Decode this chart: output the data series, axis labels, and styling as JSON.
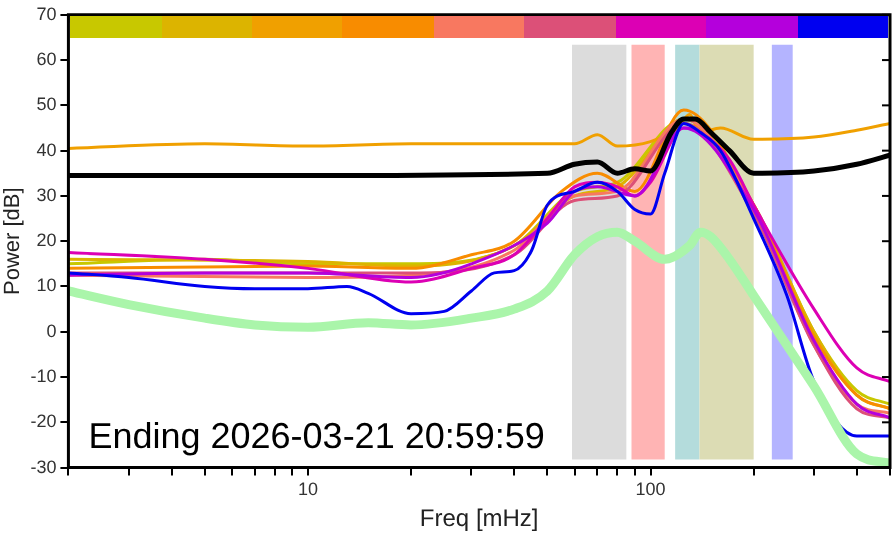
{
  "chart_data": {
    "type": "line",
    "xlabel": "Freq [mHz]",
    "ylabel": "Power [dB]",
    "log": "x",
    "xlim": [
      2,
      500
    ],
    "ylim": [
      -30,
      70
    ],
    "xticks": [
      {
        "value": 2,
        "label": null
      },
      {
        "value": 3,
        "label": null
      },
      {
        "value": 4,
        "label": null
      },
      {
        "value": 5,
        "label": null
      },
      {
        "value": 6,
        "label": null
      },
      {
        "value": 7,
        "label": null
      },
      {
        "value": 8,
        "label": null
      },
      {
        "value": 9,
        "label": null
      },
      10,
      {
        "value": 20,
        "label": null
      },
      {
        "value": 30,
        "label": null
      },
      {
        "value": 40,
        "label": null
      },
      {
        "value": 50,
        "label": null
      },
      {
        "value": 60,
        "label": null
      },
      {
        "value": 70,
        "label": null
      },
      {
        "value": 80,
        "label": null
      },
      {
        "value": 90,
        "label": null
      },
      100,
      {
        "value": 200,
        "label": null
      },
      {
        "value": 300,
        "label": null
      },
      {
        "value": 400,
        "label": null
      },
      {
        "value": 500,
        "label": null
      }
    ],
    "yticks": [
      -30,
      -20,
      -10,
      0,
      10,
      20,
      30,
      40,
      50,
      60,
      70
    ],
    "grid": false,
    "legend": false,
    "marker": "none",
    "line_style": "solid",
    "bands": [
      {
        "axis": "x",
        "from": 59,
        "to": 85,
        "color": "#dcdcdc"
      },
      {
        "axis": "x",
        "from": 88,
        "to": 110,
        "color": "#ffb4b4"
      },
      {
        "axis": "x",
        "from": 118,
        "to": 139,
        "color": "#b4dcdc"
      },
      {
        "axis": "x",
        "from": 139,
        "to": 200,
        "color": "#dcdcb4"
      },
      {
        "axis": "x",
        "from": 226,
        "to": 260,
        "color": "#b4b4ff"
      }
    ],
    "annotations": [
      "Ending 2026-03-21 20:59:59"
    ],
    "series": [
      {
        "color": "#c8c800",
        "x": [
          2,
          5,
          10,
          20,
          40,
          60,
          80,
          125,
          200,
          300,
          400,
          500
        ],
        "values": [
          15,
          16,
          15,
          15,
          19,
          31,
          33,
          47,
          28,
          0,
          -13,
          -16
        ]
      },
      {
        "color": "#dcb400",
        "x": [
          2,
          10,
          20,
          40,
          60,
          80,
          125,
          200,
          300,
          400,
          500
        ],
        "values": [
          16,
          15.5,
          14.5,
          19,
          30,
          32,
          46,
          28,
          0,
          -14,
          -17
        ]
      },
      {
        "color": "#f0a000",
        "x": [
          2,
          5,
          10,
          20,
          40,
          60,
          70,
          80,
          100,
          120,
          130,
          140,
          160,
          200,
          300,
          400,
          500
        ],
        "values": [
          40.5,
          41.5,
          41,
          41.5,
          41.5,
          41.5,
          43.5,
          41,
          42,
          45,
          48,
          44,
          45,
          42.5,
          43,
          44.5,
          46
        ]
      },
      {
        "color": "#f88c00",
        "x": [
          2,
          10,
          20,
          30,
          40,
          55,
          70,
          90,
          125,
          200,
          300,
          400,
          500
        ],
        "values": [
          14,
          14.5,
          14,
          17,
          20,
          31,
          35,
          31,
          49,
          28,
          -1,
          -14,
          -17
        ]
      },
      {
        "color": "#f87860",
        "x": [
          2,
          10,
          20,
          40,
          60,
          80,
          125,
          200,
          300,
          400,
          500
        ],
        "values": [
          12.5,
          12,
          12.5,
          18,
          30,
          31,
          47,
          27,
          -3,
          -16,
          -18
        ]
      },
      {
        "color": "#dc5078",
        "x": [
          2,
          10,
          20,
          40,
          60,
          80,
          125,
          200,
          300,
          400,
          500
        ],
        "values": [
          13,
          13,
          13,
          17,
          29,
          30,
          46,
          26,
          -3,
          -17,
          -19
        ]
      },
      {
        "color": "#dc00b4",
        "x": [
          2,
          5,
          10,
          20,
          30,
          40,
          50,
          60,
          70,
          80,
          90,
          100,
          125,
          140,
          170,
          200,
          300,
          400,
          500
        ],
        "values": [
          17.5,
          16,
          14,
          11,
          14,
          17,
          25,
          32,
          33,
          32,
          30,
          33,
          45,
          44,
          38,
          28,
          5,
          -8,
          -11
        ]
      },
      {
        "color": "#b400dc",
        "x": [
          2,
          5,
          10,
          20,
          30,
          50,
          60,
          70,
          90,
          125,
          200,
          300,
          400,
          500
        ],
        "values": [
          12.5,
          13,
          13,
          12,
          15,
          24,
          31,
          32,
          30,
          45,
          27,
          -2,
          -16,
          -19
        ]
      },
      {
        "color": "#0000f0",
        "x": [
          2,
          3,
          5,
          7,
          10,
          13,
          15,
          20,
          25,
          30,
          35,
          40,
          45,
          50,
          60,
          70,
          80,
          90,
          100,
          110,
          125,
          140,
          160,
          200,
          250,
          300,
          400,
          500
        ],
        "values": [
          13,
          12,
          10,
          9.5,
          9.5,
          10,
          8.5,
          4,
          4.5,
          9,
          13,
          13.5,
          18,
          28,
          31,
          33,
          31,
          27,
          26,
          35,
          46,
          44,
          40,
          25,
          8,
          -11,
          -23,
          -23
        ]
      },
      {
        "color": "#000000",
        "x": [
          2,
          10,
          50,
          60,
          70,
          80,
          90,
          100,
          115,
          125,
          135,
          150,
          170,
          200,
          300,
          400,
          500
        ],
        "values": [
          34.5,
          34.5,
          35,
          37,
          37.5,
          35,
          36,
          35.5,
          44,
          47,
          47,
          44,
          40,
          35,
          35.5,
          37,
          39
        ]
      },
      {
        "color": "#aaf5aa",
        "x": [
          2,
          3,
          5,
          7,
          10,
          15,
          20,
          30,
          40,
          50,
          60,
          70,
          80,
          90,
          110,
          130,
          140,
          150,
          170,
          200,
          250,
          300,
          400,
          500
        ],
        "values": [
          9,
          6,
          3,
          1.5,
          1,
          2,
          1.5,
          3,
          5,
          9,
          17,
          21,
          22,
          20,
          16,
          19,
          22,
          21,
          16,
          8,
          -3,
          -12,
          -27,
          -29
        ]
      }
    ]
  }
}
